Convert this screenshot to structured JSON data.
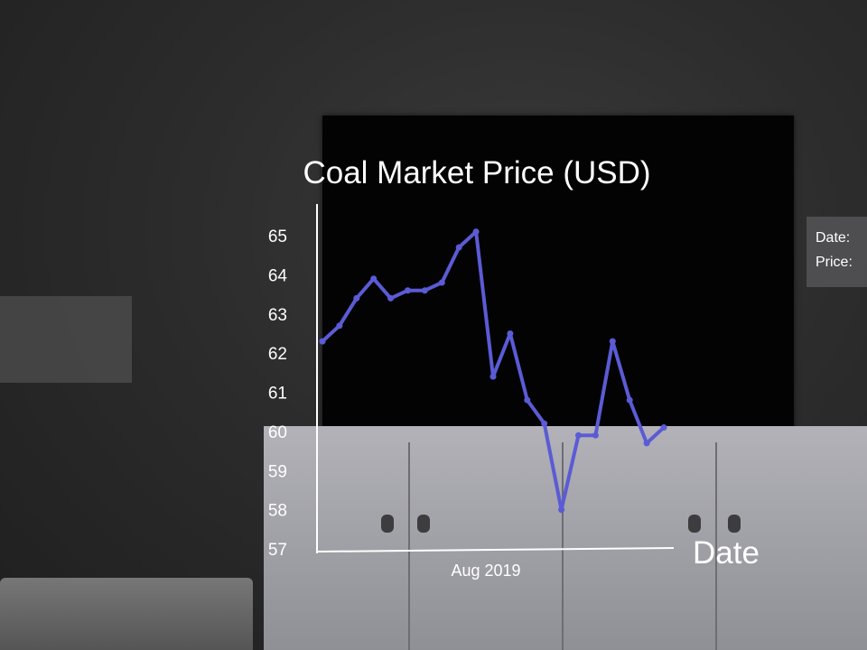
{
  "chart_data": {
    "type": "line",
    "title": "Coal Market Price (USD)",
    "xlabel": "Date",
    "ylabel": "",
    "x_tick_labels": [
      "Aug 2019"
    ],
    "ylim": [
      57,
      65
    ],
    "y_ticks": [
      57,
      58,
      59,
      60,
      61,
      62,
      63,
      64,
      65
    ],
    "grid": false,
    "series": [
      {
        "values": [
          62.3,
          62.7,
          63.4,
          63.9,
          63.4,
          63.6,
          63.6,
          63.8,
          64.7,
          65.1,
          61.4,
          62.5,
          60.8,
          60.2,
          58.0,
          59.9,
          59.9,
          62.3,
          60.8,
          59.7,
          60.1
        ]
      }
    ],
    "colors": {
      "line": "#5b5bd6",
      "axis": "#ffffff",
      "text": "#ffffff"
    }
  },
  "tooltip": {
    "date_label": "Date:",
    "price_label": "Price:"
  }
}
